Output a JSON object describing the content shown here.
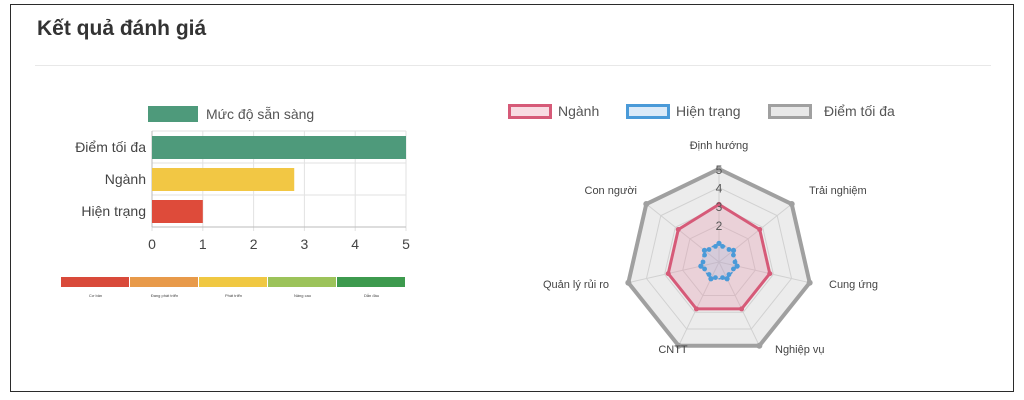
{
  "page": {
    "title": "Kết quả đánh giá"
  },
  "bar_legend": {
    "label": "Mức độ sẵn sàng",
    "color": "#4e9a7b"
  },
  "scale_labels": [
    "Cơ bản",
    "Đang phát triển",
    "Phát triển",
    "Nâng cao",
    "Dẫn đầu"
  ],
  "scale_colors": [
    "#d94a3a",
    "#e89a4a",
    "#f0c842",
    "#9cc35a",
    "#3d9a4e"
  ],
  "radar_legend": [
    {
      "label": "Ngành",
      "color": "#d65a78",
      "fill": "#f8dbe2"
    },
    {
      "label": "Hiện trạng",
      "color": "#4a9ad8",
      "fill": "#dbeaf8"
    },
    {
      "label": "Điểm tối đa",
      "color": "#a0a0a0",
      "fill": "#e8e8e8"
    }
  ],
  "chart_data": [
    {
      "type": "bar",
      "orientation": "horizontal",
      "categories": [
        "Điểm tối đa",
        "Ngành",
        "Hiện trạng"
      ],
      "values": [
        5,
        2.8,
        1
      ],
      "colors": [
        "#4e9a7b",
        "#f2c744",
        "#de4b3a"
      ],
      "series": [
        {
          "name": "Mức độ sẵn sàng",
          "values": [
            5,
            2.8,
            1
          ]
        }
      ],
      "xticks": [
        "0",
        "1",
        "2",
        "3",
        "4",
        "5"
      ],
      "xlim": [
        0,
        5
      ],
      "grid": true,
      "legend": "top"
    },
    {
      "type": "radar",
      "axes": [
        "Định hướng",
        "Trải nghiệm",
        "Cung ứng",
        "Nghiệp vụ",
        "CNTT",
        "Quản lý rủi ro",
        "Con người"
      ],
      "rticks": [
        "2",
        "3",
        "4",
        "5"
      ],
      "rlim": [
        0,
        5
      ],
      "series": [
        {
          "name": "Ngành",
          "values": [
            3.1,
            2.8,
            2.8,
            2.8,
            2.8,
            2.8,
            2.8
          ]
        },
        {
          "name": "Hiện trạng",
          "values": [
            1,
            1,
            1,
            1,
            1,
            1,
            1
          ]
        },
        {
          "name": "Điểm tối đa",
          "values": [
            5,
            5,
            5,
            5,
            5,
            5,
            5
          ]
        }
      ],
      "legend": "top"
    }
  ]
}
